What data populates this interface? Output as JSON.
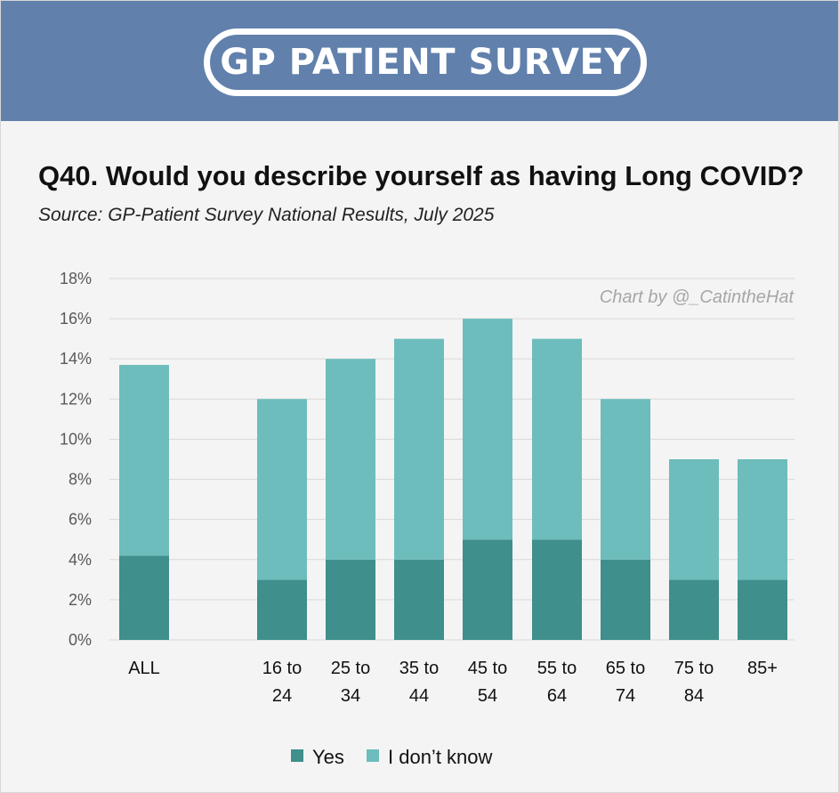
{
  "banner": {
    "logo_text": "GP PATIENT SURVEY"
  },
  "header": {
    "title": "Q40. Would you describe yourself as having Long COVID?",
    "subtitle": "Source: GP-Patient Survey National Results, July 2025"
  },
  "colors": {
    "banner": "#6180ac",
    "yes": "#3f8f8c",
    "dont_know": "#6dbdbc",
    "grid": "#d9d9d9"
  },
  "chart_data": {
    "type": "bar",
    "stacked": true,
    "credit": "Chart by @_CatintheHat",
    "categories": [
      [
        "ALL"
      ],
      [
        "16 to",
        "24"
      ],
      [
        "25 to",
        "34"
      ],
      [
        "35 to",
        "44"
      ],
      [
        "45 to",
        "54"
      ],
      [
        "55 to",
        "64"
      ],
      [
        "65 to",
        "74"
      ],
      [
        "75 to",
        "84"
      ],
      [
        "85+"
      ]
    ],
    "series": [
      {
        "name": "Yes",
        "values": [
          4.2,
          3,
          4,
          4,
          5,
          5,
          4,
          3,
          3
        ]
      },
      {
        "name": "I don’t know",
        "values": [
          9.5,
          9,
          10,
          11,
          11,
          10,
          8,
          6,
          6
        ]
      }
    ],
    "ylim": [
      0,
      18
    ],
    "yticks": [
      "0%",
      "2%",
      "4%",
      "6%",
      "8%",
      "10%",
      "12%",
      "14%",
      "16%",
      "18%"
    ],
    "grid": true,
    "legend": "bottom",
    "xlabel": "",
    "ylabel": ""
  }
}
